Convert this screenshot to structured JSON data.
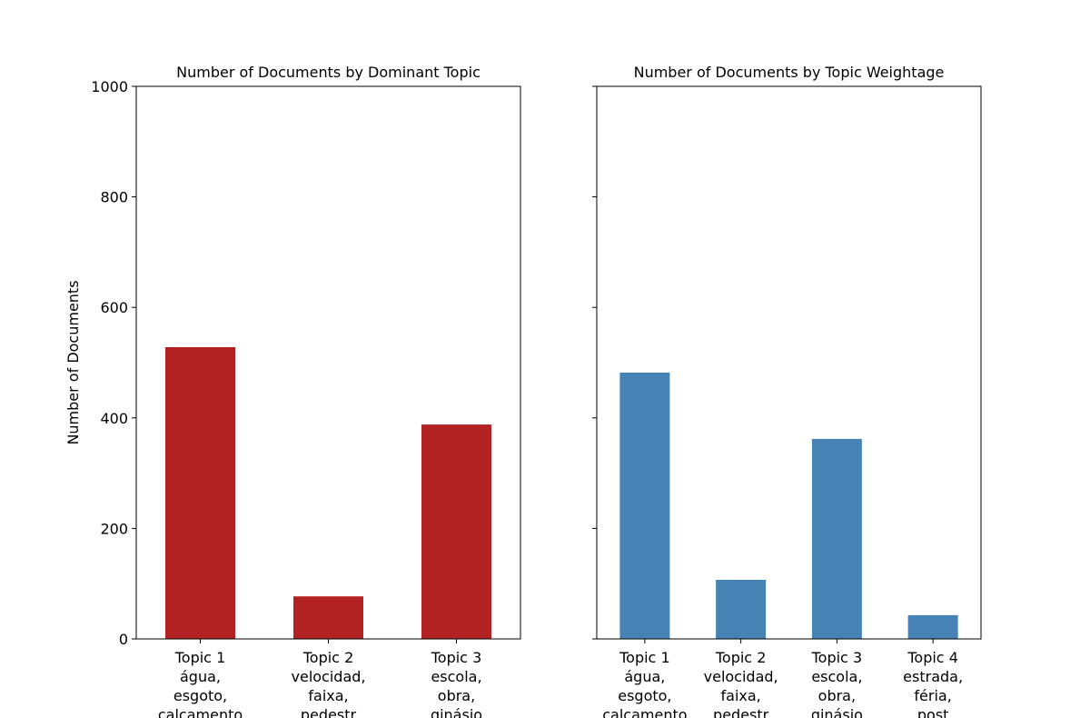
{
  "chart_data": [
    {
      "type": "bar",
      "title": "Number of Documents by Dominant Topic",
      "xlabel": "",
      "ylabel": "Number of Documents",
      "ylim": [
        0,
        1000
      ],
      "yticks": [
        0,
        200,
        400,
        600,
        800,
        1000
      ],
      "grid": false,
      "color": "#b22222",
      "categories": [
        [
          "Topic 1",
          "água,",
          "esgoto,",
          "calcamento"
        ],
        [
          "Topic 2",
          "velocidad,",
          "faixa,",
          "pedestr"
        ],
        [
          "Topic 3",
          "escola,",
          "obra,",
          "ginásio"
        ]
      ],
      "values": [
        528,
        77,
        388
      ]
    },
    {
      "type": "bar",
      "title": "Number of Documents by Topic Weightage",
      "xlabel": "",
      "ylabel": "",
      "ylim": [
        0,
        1000
      ],
      "yticks": [
        0,
        200,
        400,
        600,
        800,
        1000
      ],
      "shared_y": true,
      "grid": false,
      "color": "#4682b4",
      "categories": [
        [
          "Topic 1",
          "água,",
          "esgoto,",
          "calcamento"
        ],
        [
          "Topic 2",
          "velocidad,",
          "faixa,",
          "pedestr"
        ],
        [
          "Topic 3",
          "escola,",
          "obra,",
          "ginásio"
        ],
        [
          "Topic 4",
          "estrada,",
          "féria,",
          "post"
        ]
      ],
      "values": [
        482,
        107,
        362,
        43
      ]
    }
  ]
}
